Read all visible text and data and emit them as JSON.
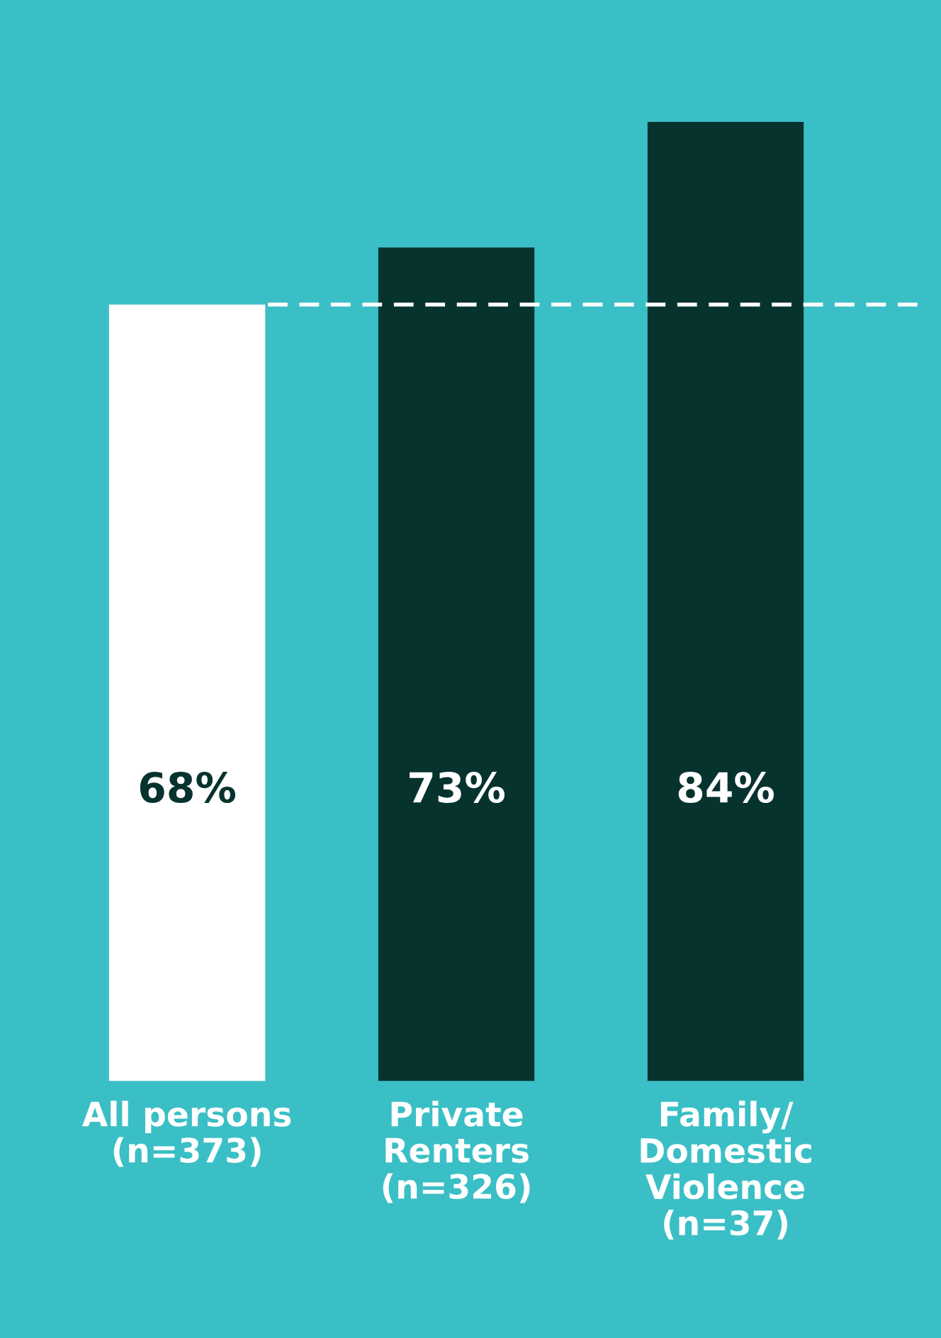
{
  "chart_data": {
    "type": "bar",
    "categories": [
      "All persons\n(n=373)",
      "Private\nRenters\n(n=326)",
      "Family/\nDomestic\nViolence\n(n=37)"
    ],
    "values": [
      68,
      73,
      84
    ],
    "colors": [
      "#ffffff",
      "#07332f",
      "#07332f"
    ],
    "value_labels": [
      "68%",
      "73%",
      "84%"
    ],
    "ref_lines": [
      {
        "axis": "y",
        "value": 68,
        "color": "#ffffff",
        "line_style": "dashed"
      }
    ],
    "grid": false,
    "legend": false
  }
}
